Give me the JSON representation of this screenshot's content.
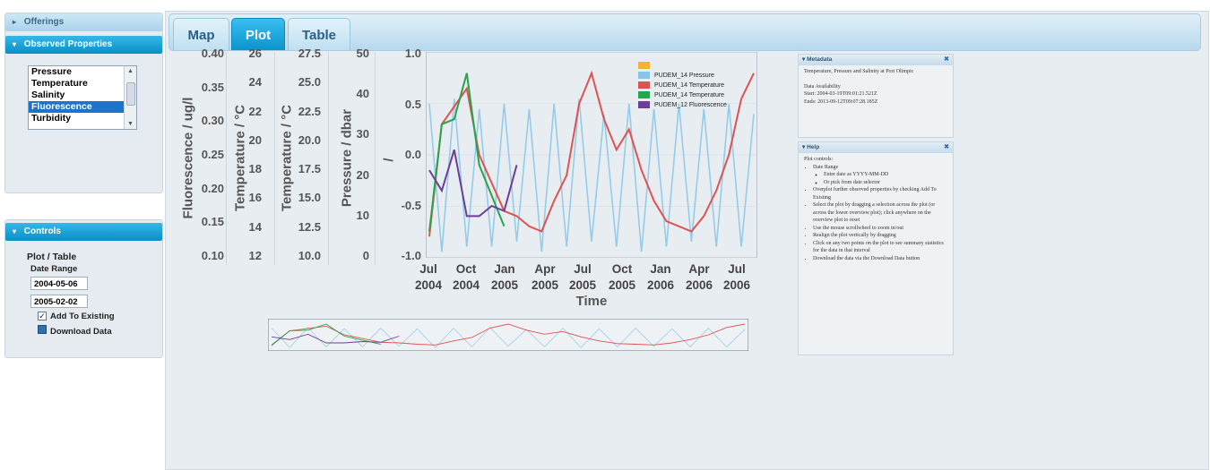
{
  "sidebar": {
    "offerings_header": "Offerings",
    "observed_header": "Observed Properties",
    "observed_items": [
      "Pressure",
      "Temperature",
      "Salinity",
      "Fluorescence",
      "Turbidity"
    ],
    "observed_selected": "Fluorescence",
    "controls_header": "Controls",
    "plot_table_label": "Plot / Table",
    "date_range_label": "Date Range",
    "start_date": "2004-05-06",
    "end_date": "2005-02-02",
    "add_to_existing_label": "Add To Existing",
    "add_to_existing_checked": true,
    "download_label": "Download Data"
  },
  "tabs": [
    {
      "label": "Map",
      "active": false
    },
    {
      "label": "Plot",
      "active": true
    },
    {
      "label": "Table",
      "active": false
    }
  ],
  "axes": {
    "fluorescence": {
      "title": "Fluorescence / ug/l",
      "ticks": [
        "0.40",
        "0.35",
        "0.30",
        "0.25",
        "0.20",
        "0.15",
        "0.10"
      ]
    },
    "temperature_a": {
      "title": "Temperature / °C",
      "ticks": [
        "26",
        "24",
        "22",
        "20",
        "18",
        "16",
        "14",
        "12"
      ]
    },
    "temperature_b": {
      "title": "Temperature / °C",
      "ticks": [
        "27.5",
        "25.0",
        "22.5",
        "20.0",
        "17.5",
        "15.0",
        "12.5",
        "10.0"
      ]
    },
    "pressure": {
      "title": "Pressure / dbar",
      "ticks": [
        "50",
        "40",
        "30",
        "20",
        "10",
        "0"
      ]
    },
    "main": {
      "title": "/",
      "ticks": [
        "1.0",
        "0.5",
        "0.0",
        "-0.5",
        "-1.0"
      ]
    }
  },
  "time_axis": {
    "title": "Time",
    "ticks": [
      [
        "Jul",
        ""
      ],
      [
        "2004",
        "2004"
      ],
      [
        "Oct",
        ""
      ],
      [
        "Jan",
        "2005"
      ],
      [
        "Apr",
        ""
      ],
      [
        "Jul",
        "2005"
      ],
      [
        "2005",
        "2005"
      ],
      [
        "Oct",
        ""
      ],
      [
        "Jan",
        "2006"
      ],
      [
        "Apr",
        ""
      ],
      [
        "Jul",
        "2006"
      ],
      [
        "2006",
        ""
      ]
    ],
    "tick_labels": [
      "Jul 2004",
      "Oct 2004",
      "Jan 2005",
      "Apr 2005",
      "Jul 2005",
      "Oct 2005",
      "Jan 2006",
      "Apr 2006",
      "Jul 2006"
    ]
  },
  "legend": [
    {
      "label": "",
      "color": "#f0b43c"
    },
    {
      "label": "PUDEM_14 Pressure",
      "color": "#86c5e8"
    },
    {
      "label": "PUDEM_14 Temperature",
      "color": "#e05252"
    },
    {
      "label": "PUDEM_14 Temperature",
      "color": "#2aa44a"
    },
    {
      "label": "PUDEM_12 Fluorescence",
      "color": "#6b3f98"
    }
  ],
  "chart_data": {
    "type": "line",
    "title": "",
    "xlabel": "Time",
    "ylabel": "/",
    "ylim": [
      -1.0,
      1.0
    ],
    "x": [
      "2004-06",
      "2004-07",
      "2004-08",
      "2004-09",
      "2004-10",
      "2004-11",
      "2004-12",
      "2005-01",
      "2005-02",
      "2005-03",
      "2005-04",
      "2005-05",
      "2005-06",
      "2005-07",
      "2005-08",
      "2005-09",
      "2005-10",
      "2005-11",
      "2005-12",
      "2006-01",
      "2006-02",
      "2006-03",
      "2006-04",
      "2006-05",
      "2006-06",
      "2006-07",
      "2006-08"
    ],
    "series": [
      {
        "name": "PUDEM_14 Temperature",
        "color": "#e05252",
        "points": [
          [
            "2004-06",
            -0.8
          ],
          [
            "2004-07",
            0.3
          ],
          [
            "2004-09",
            0.65
          ],
          [
            "2004-10",
            0.0
          ],
          [
            "2004-12",
            -0.55
          ],
          [
            "2005-01",
            -0.6
          ],
          [
            "2005-02",
            -0.7
          ],
          [
            "2005-03",
            -0.75
          ],
          [
            "2005-04",
            -0.45
          ],
          [
            "2005-05",
            -0.2
          ],
          [
            "2005-06",
            0.5
          ],
          [
            "2005-07",
            0.8
          ],
          [
            "2005-08",
            0.35
          ],
          [
            "2005-09",
            0.05
          ],
          [
            "2005-10",
            0.25
          ],
          [
            "2005-11",
            -0.15
          ],
          [
            "2005-12",
            -0.45
          ],
          [
            "2006-01",
            -0.65
          ],
          [
            "2006-02",
            -0.7
          ],
          [
            "2006-03",
            -0.75
          ],
          [
            "2006-04",
            -0.6
          ],
          [
            "2006-05",
            -0.35
          ],
          [
            "2006-06",
            0.0
          ],
          [
            "2006-07",
            0.55
          ],
          [
            "2006-08",
            0.8
          ]
        ]
      },
      {
        "name": "PUDEM_14 Temperature",
        "color": "#2aa44a",
        "points": [
          [
            "2004-06",
            -0.75
          ],
          [
            "2004-07",
            0.3
          ],
          [
            "2004-08",
            0.35
          ],
          [
            "2004-09",
            0.8
          ],
          [
            "2004-10",
            -0.1
          ],
          [
            "2004-12",
            -0.7
          ]
        ]
      },
      {
        "name": "PUDEM_12 Fluorescence",
        "color": "#6b3f98",
        "points": [
          [
            "2004-06",
            -0.15
          ],
          [
            "2004-07",
            -0.35
          ],
          [
            "2004-08",
            0.05
          ],
          [
            "2004-09",
            -0.6
          ],
          [
            "2004-10",
            -0.6
          ],
          [
            "2004-11",
            -0.5
          ],
          [
            "2004-12",
            -0.55
          ],
          [
            "2005-01",
            -0.1
          ]
        ]
      },
      {
        "name": "PUDEM_14 Pressure",
        "color": "#86c5e8",
        "points": [
          [
            "2004-06",
            0.5
          ],
          [
            "2004-07",
            -0.95
          ],
          [
            "2004-08",
            0.55
          ],
          [
            "2004-09",
            -0.9
          ],
          [
            "2004-10",
            0.45
          ],
          [
            "2004-11",
            -0.9
          ],
          [
            "2004-12",
            0.5
          ],
          [
            "2005-01",
            -0.85
          ],
          [
            "2005-02",
            0.45
          ],
          [
            "2005-03",
            -0.95
          ],
          [
            "2005-04",
            0.5
          ],
          [
            "2005-05",
            -0.9
          ],
          [
            "2005-06",
            0.55
          ],
          [
            "2005-07",
            -0.85
          ],
          [
            "2005-08",
            0.4
          ],
          [
            "2005-09",
            -0.9
          ],
          [
            "2005-10",
            0.5
          ],
          [
            "2005-11",
            -0.95
          ],
          [
            "2005-12",
            0.45
          ],
          [
            "2006-01",
            -0.9
          ],
          [
            "2006-02",
            0.5
          ],
          [
            "2006-03",
            -0.85
          ],
          [
            "2006-04",
            0.45
          ],
          [
            "2006-05",
            -0.9
          ],
          [
            "2006-06",
            0.5
          ],
          [
            "2006-07",
            -0.9
          ],
          [
            "2006-08",
            0.4
          ]
        ]
      }
    ]
  },
  "metadata_panel": {
    "title": "Metadata",
    "description": "Temperature, Pressure and Salinity at Port Olimpic",
    "availability_label": "Data Availability",
    "start": "Start: 2004-03-19T09:01:21.521Z",
    "end": "Ends: 2013-09-12T09:07:28.185Z"
  },
  "help_panel": {
    "title": "Help",
    "intro": "Plot controls:",
    "items": [
      "Date Range",
      "Overplot further observed properties by checking Add To Existing",
      "Select the plot by dragging a selection across the plot (or across the lower overview plot); click anywhere on the overview plot to reset",
      "Use the mouse scrollwheel to zoom in/out",
      "Realign the plot vertically by dragging",
      "Click on any two points on the plot to see summary statistics for the data in that interval",
      "Download the data via the Download Data button"
    ],
    "date_sub": [
      "Enter date as YYYY-MM-DD",
      "Or pick from date selector"
    ]
  }
}
